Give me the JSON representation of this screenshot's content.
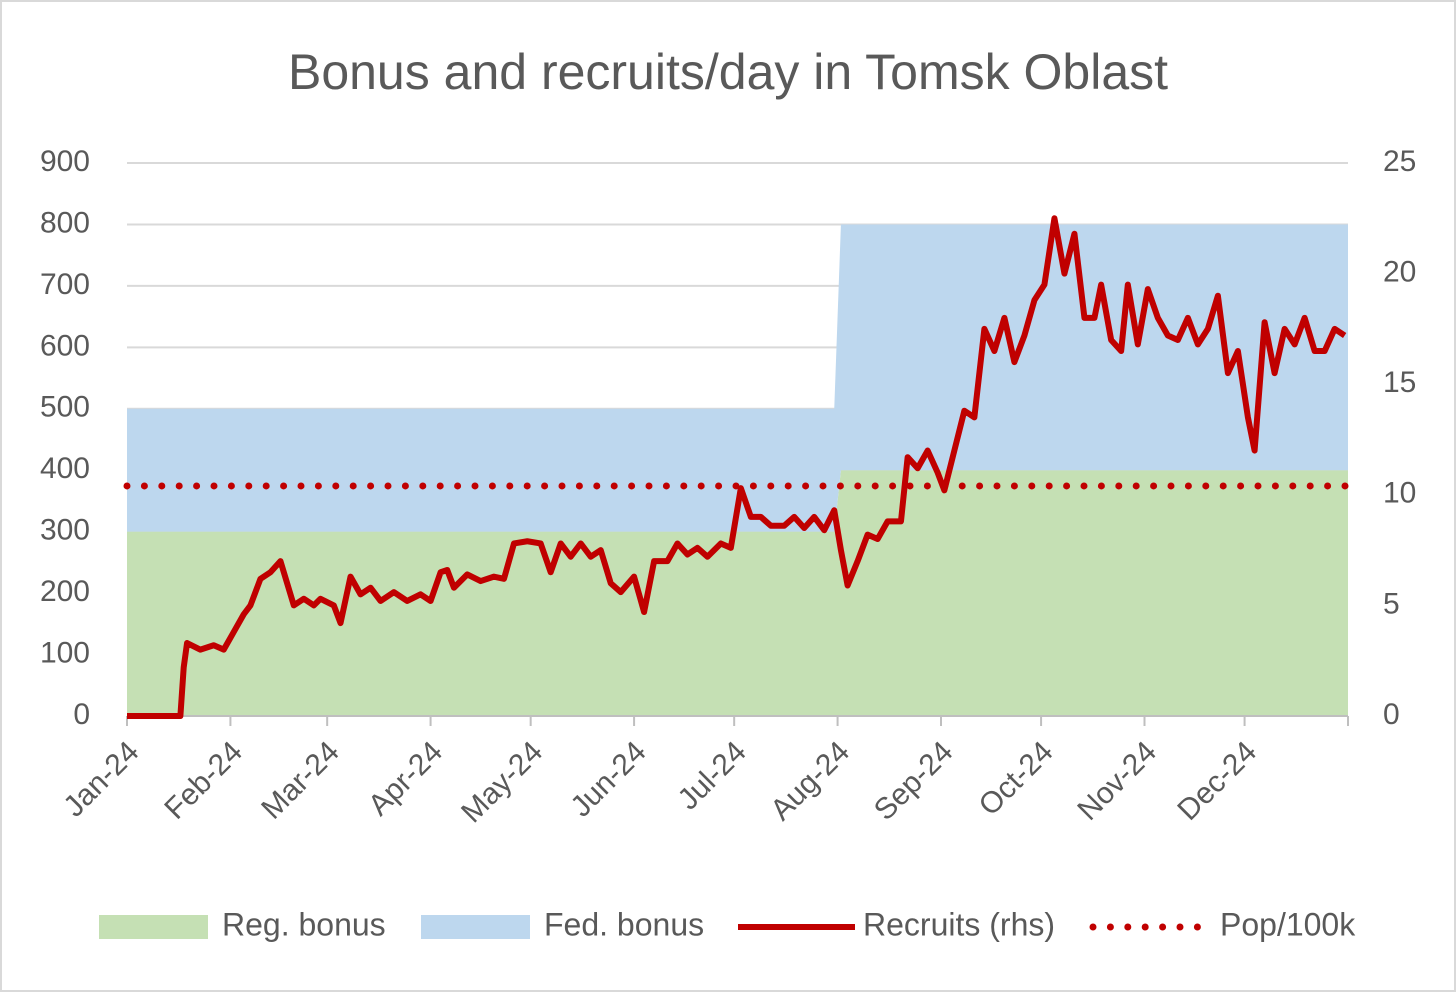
{
  "chart_data": {
    "type": "combo",
    "title": "Bonus and recruits/day in Tomsk Oblast",
    "xlim": [
      0,
      366
    ],
    "xticks": [
      {
        "value": 0,
        "label": "Jan-24"
      },
      {
        "value": 31,
        "label": "Feb-24"
      },
      {
        "value": 60,
        "label": "Mar-24"
      },
      {
        "value": 91,
        "label": "Apr-24"
      },
      {
        "value": 121,
        "label": "May-24"
      },
      {
        "value": 152,
        "label": "Jun-24"
      },
      {
        "value": 182,
        "label": "Jul-24"
      },
      {
        "value": 213,
        "label": "Aug-24"
      },
      {
        "value": 244,
        "label": "Sep-24"
      },
      {
        "value": 274,
        "label": "Oct-24"
      },
      {
        "value": 305,
        "label": "Nov-24"
      },
      {
        "value": 335,
        "label": "Dec-24"
      }
    ],
    "ylim": [
      0,
      900
    ],
    "yticks": [
      0,
      100,
      200,
      300,
      400,
      500,
      600,
      700,
      800,
      900
    ],
    "y2lim": [
      0,
      25
    ],
    "y2ticks": [
      0,
      5,
      10,
      15,
      20,
      25
    ],
    "grid": true,
    "legend": "bottom",
    "series": [
      {
        "name": "Reg. bonus",
        "style": "area",
        "color": "#c5e0b4",
        "x": [
          0,
          212,
          214,
          366
        ],
        "values": [
          300,
          300,
          400,
          400
        ]
      },
      {
        "name": "Fed. bonus",
        "style": "area",
        "color": "#bdd7ee",
        "x": [
          0,
          212,
          214,
          366
        ],
        "values": [
          200,
          200,
          400,
          400
        ]
      },
      {
        "name": "Recruits (rhs)",
        "style": "line",
        "color": "#c00000",
        "axis": "y2",
        "x": [
          0,
          16,
          17,
          18,
          22,
          26,
          29,
          32,
          35,
          37,
          40,
          43,
          46,
          48,
          50,
          53,
          56,
          58,
          62,
          64,
          67,
          70,
          73,
          76,
          80,
          84,
          88,
          91,
          94,
          96,
          98,
          102,
          106,
          110,
          113,
          116,
          120,
          124,
          127,
          130,
          133,
          136,
          139,
          142,
          145,
          148,
          152,
          155,
          158,
          162,
          165,
          168,
          171,
          174,
          178,
          181,
          184,
          187,
          190,
          193,
          197,
          200,
          203,
          206,
          209,
          212,
          214,
          216,
          219,
          222,
          225,
          228,
          232,
          234,
          237,
          240,
          243,
          245,
          248,
          251,
          254,
          257,
          260,
          263,
          266,
          269,
          272,
          275,
          278,
          281,
          284,
          287,
          290,
          292,
          295,
          298,
          300,
          303,
          306,
          309,
          312,
          315,
          318,
          321,
          324,
          327,
          330,
          333,
          336,
          338,
          341,
          344,
          347,
          350,
          353,
          356,
          359,
          362,
          365
        ],
        "values": [
          0,
          0,
          2.2,
          3.3,
          3.0,
          3.2,
          3.0,
          3.8,
          4.6,
          5.0,
          6.2,
          6.5,
          7.0,
          6.0,
          5.0,
          5.3,
          5.0,
          5.3,
          5.0,
          4.2,
          6.3,
          5.5,
          5.8,
          5.2,
          5.6,
          5.2,
          5.5,
          5.2,
          6.5,
          6.6,
          5.8,
          6.4,
          6.1,
          6.3,
          6.2,
          7.8,
          7.9,
          7.8,
          6.5,
          7.8,
          7.2,
          7.8,
          7.2,
          7.5,
          6.0,
          5.6,
          6.3,
          4.7,
          7.0,
          7.0,
          7.8,
          7.3,
          7.6,
          7.2,
          7.8,
          7.6,
          10.3,
          9.0,
          9.0,
          8.6,
          8.6,
          9.0,
          8.5,
          9.0,
          8.4,
          9.3,
          7.5,
          5.9,
          7.0,
          8.2,
          8.0,
          8.8,
          8.8,
          11.7,
          11.2,
          12.0,
          11.0,
          10.2,
          12.0,
          13.8,
          13.5,
          17.5,
          16.5,
          18.0,
          16.0,
          17.2,
          18.8,
          19.5,
          22.5,
          20.0,
          21.8,
          18.0,
          18.0,
          19.5,
          17.0,
          16.5,
          19.5,
          16.8,
          19.3,
          18.0,
          17.2,
          17.0,
          18.0,
          16.8,
          17.5,
          19.0,
          15.5,
          16.5,
          13.5,
          12.0,
          17.8,
          15.5,
          17.5,
          16.8,
          18.0,
          16.5,
          16.5,
          17.5,
          17.2
        ]
      },
      {
        "name": "Pop/100k",
        "style": "dotted",
        "color": "#c00000",
        "axis": "y2",
        "x": [
          0,
          366
        ],
        "values": [
          10.4,
          10.4
        ]
      }
    ]
  }
}
